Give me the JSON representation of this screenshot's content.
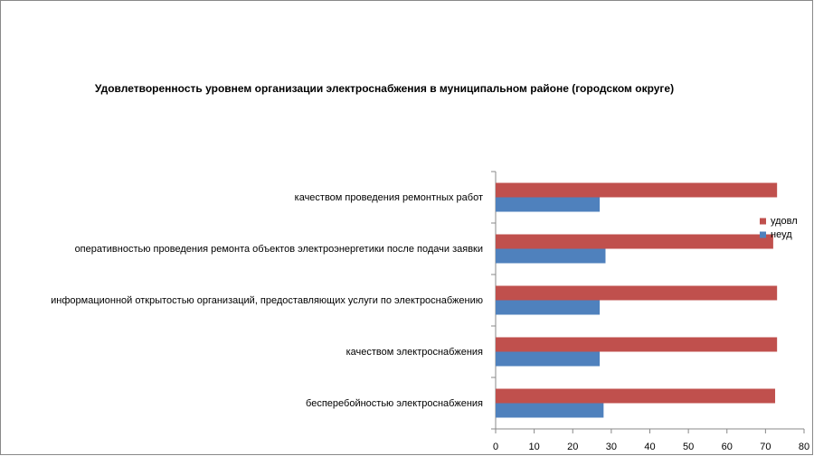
{
  "chart_data": {
    "type": "hbar",
    "title": "Удовлетворенность уровнем организации электроснабжения в муниципальном районе (городском округе)",
    "categories": [
      "бесперебойностью электроснабжения",
      "качеством электроснабжения",
      "информационной открытостью организаций, предоставляющих услуги по электроснабжению",
      "оперативностью проведения ремонта объектов электроэнергетики после подачи заявки",
      "качеством проведения ремонтных работ"
    ],
    "series": [
      {
        "name": "удовл",
        "color": "#c0504d",
        "values": [
          72.5,
          73,
          73,
          72,
          73
        ]
      },
      {
        "name": "неуд",
        "color": "#4f81bd",
        "values": [
          28,
          27,
          27,
          28.5,
          27
        ]
      }
    ],
    "xlim": [
      0,
      80
    ],
    "xticks": [
      0,
      10,
      20,
      30,
      40,
      50,
      60,
      70,
      80
    ],
    "grid": false,
    "legend": "right"
  }
}
